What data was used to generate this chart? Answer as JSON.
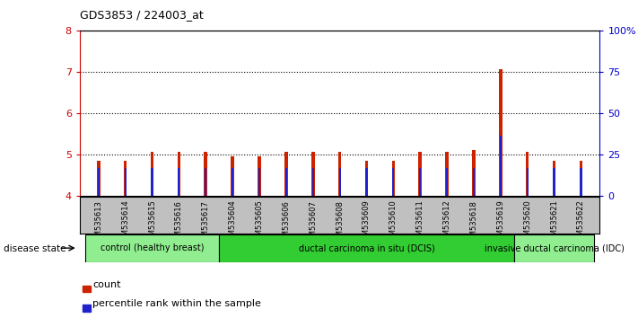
{
  "title": "GDS3853 / 224003_at",
  "samples": [
    "GSM535613",
    "GSM535614",
    "GSM535615",
    "GSM535616",
    "GSM535617",
    "GSM535604",
    "GSM535605",
    "GSM535606",
    "GSM535607",
    "GSM535608",
    "GSM535609",
    "GSM535610",
    "GSM535611",
    "GSM535612",
    "GSM535618",
    "GSM535619",
    "GSM535620",
    "GSM535621",
    "GSM535622"
  ],
  "count_values": [
    4.85,
    4.85,
    5.05,
    5.05,
    5.05,
    4.95,
    4.95,
    5.05,
    5.05,
    5.05,
    4.85,
    4.85,
    5.05,
    5.05,
    5.1,
    7.05,
    5.05,
    4.85,
    4.85
  ],
  "percentile_values": [
    4.67,
    4.67,
    4.67,
    4.67,
    4.67,
    4.67,
    4.67,
    4.67,
    4.67,
    4.67,
    4.67,
    4.67,
    4.67,
    4.67,
    4.67,
    5.45,
    4.67,
    4.67,
    4.67
  ],
  "ylim_left": [
    4,
    8
  ],
  "ylim_right": [
    0,
    100
  ],
  "yticks_left": [
    4,
    5,
    6,
    7,
    8
  ],
  "yticks_right": [
    0,
    25,
    50,
    75,
    100
  ],
  "ytick_labels_right": [
    "0",
    "25",
    "50",
    "75",
    "100%"
  ],
  "bar_bottom": 4.0,
  "bar_color": "#cc2200",
  "percentile_color": "#2222cc",
  "bar_width": 0.12,
  "percentile_bar_width": 0.12,
  "tick_color_left": "#cc0000",
  "tick_color_right": "#0000cc",
  "group_bg": "#c0c0c0",
  "dotted_yticks": [
    5,
    6,
    7
  ],
  "group_configs": [
    {
      "start": 0,
      "end": 4,
      "label": "control (healthy breast)",
      "color": "#90ee90"
    },
    {
      "start": 5,
      "end": 15,
      "label": "ductal carcinoma in situ (DCIS)",
      "color": "#32cd32"
    },
    {
      "start": 16,
      "end": 18,
      "label": "invasive ductal carcinoma (IDC)",
      "color": "#90ee90"
    }
  ],
  "disease_label": "disease state",
  "legend_count": "count",
  "legend_percentile": "percentile rank within the sample"
}
